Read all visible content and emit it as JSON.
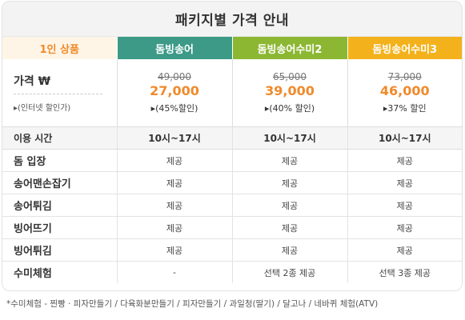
{
  "title": "패키지별 가격 안내",
  "headers": [
    "1인 상품",
    "돔빙송어",
    "돔빙송어수미2",
    "돔빙송어수미3"
  ],
  "price": {
    "label": "가격 ₩",
    "sublabel": "▸(인터넷 할인가)",
    "packages": [
      {
        "old": "49,000",
        "new": "27,000",
        "discount": "▸(45%할인)"
      },
      {
        "old": "65,000",
        "new": "39,000",
        "discount": "▸(40% 할인)"
      },
      {
        "old": "73,000",
        "new": "46,000",
        "discount": "▸37% 할인"
      }
    ]
  },
  "rows": [
    {
      "label": "이용 시간",
      "values": [
        "10시~17시",
        "10시~17시",
        "10시~17시"
      ]
    },
    {
      "label": "돔 입장",
      "values": [
        "제공",
        "제공",
        "제공"
      ]
    },
    {
      "label": "송어맨손잡기",
      "values": [
        "제공",
        "제공",
        "제공"
      ]
    },
    {
      "label": "송어튀김",
      "values": [
        "제공",
        "제공",
        "제공"
      ]
    },
    {
      "label": "빙어뜨기",
      "values": [
        "제공",
        "제공",
        "제공"
      ]
    },
    {
      "label": "빙어튀김",
      "values": [
        "제공",
        "제공",
        "제공"
      ]
    },
    {
      "label": "수미체험",
      "values": [
        "-",
        "선택 2종 제공",
        "선택 3종 제공"
      ]
    }
  ],
  "footnote": "*수미체험 - 찐빵 · 피자만들기 / 다육화분만들기 / 피자만들기 / 과일청(딸기) / 달고나 / 네바퀴 체험(ATV)"
}
